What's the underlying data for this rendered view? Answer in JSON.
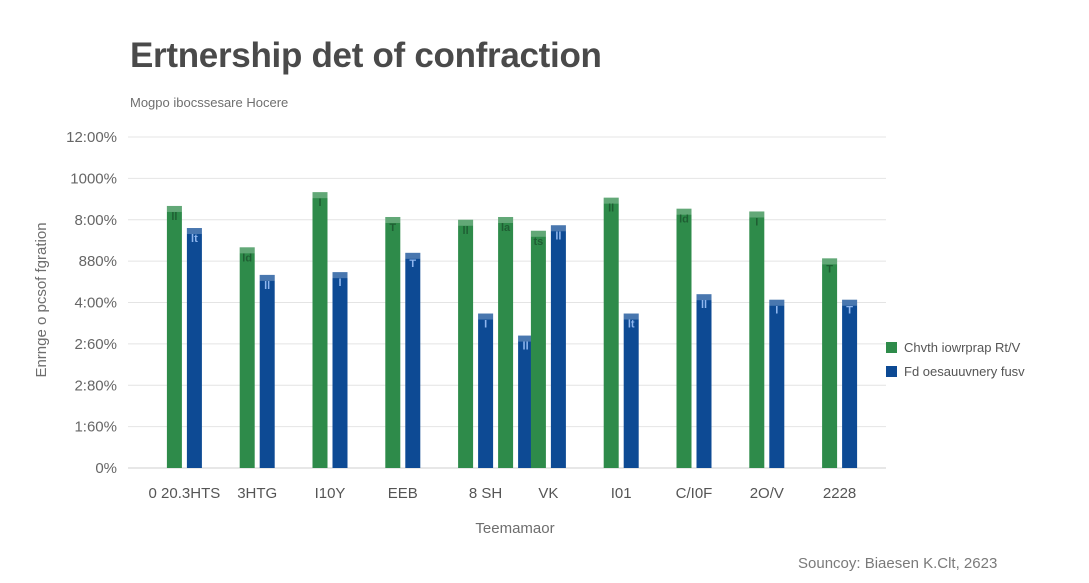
{
  "title": "Ertnership det of confraction",
  "subtitle": "Mogpo ibocssesare Hocere",
  "source": "Souncoy: Biaesen K.Clt, 2623",
  "chart_data": {
    "type": "bar",
    "ylabel": "Enrnge o pcsof fgration",
    "xlabel": "Teemamaor",
    "y_tick_labels": [
      "0%",
      "1:60%",
      "2:80%",
      "2:60%",
      "4:00%",
      "880%",
      "8:00%",
      "1000%",
      "12:00%"
    ],
    "ylim": [
      0,
      12
    ],
    "grid": true,
    "legend_position": "right",
    "categories": [
      "0 20.3HTS",
      "3HTG",
      "I10Y",
      "EEB",
      "8 SH",
      "VK",
      "I01",
      "C/I0F",
      "2O/V",
      "2228"
    ],
    "series": [
      {
        "name": "Chvth iowrprap Rt/V",
        "color": "#2e8b4a",
        "values": [
          9.5,
          8.0,
          10.0,
          9.1,
          9.0,
          8.6,
          9.8,
          9.4,
          9.3,
          7.6
        ]
      },
      {
        "name": "Fd oesauuvnery fusv",
        "color": "#0d4a94",
        "values": [
          8.7,
          7.0,
          7.1,
          7.8,
          5.6,
          8.8,
          5.6,
          6.3,
          6.1,
          6.1
        ]
      }
    ],
    "extra_bars": [
      {
        "series": 0,
        "after_category": 4,
        "value": 9.1
      },
      {
        "series": 1,
        "after_category": 4,
        "value": 4.8
      }
    ],
    "bar_labels": [
      "ll",
      "lt",
      "ld",
      "ll",
      "I",
      "I",
      "T",
      "T",
      "ll",
      "I",
      "la",
      "ll",
      "ts",
      "ll"
    ],
    "error_glyph": "T"
  }
}
